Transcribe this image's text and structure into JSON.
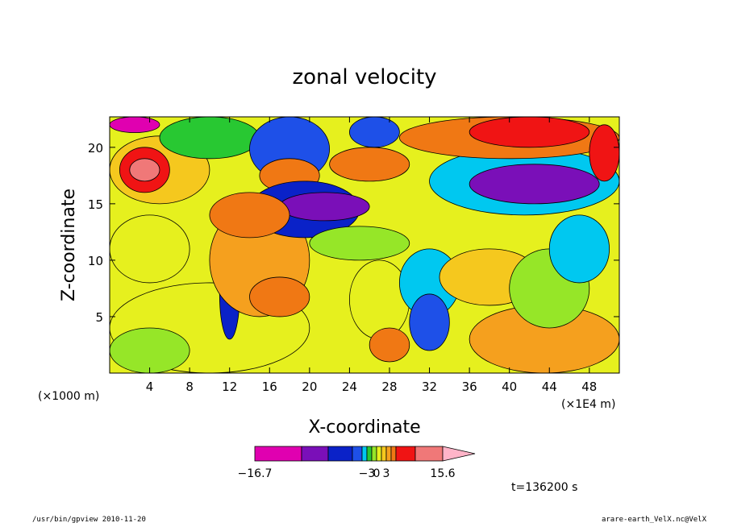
{
  "chart_data": {
    "type": "heatmap",
    "title": "zonal velocity",
    "xlabel": "X-coordinate",
    "ylabel": "Z-coordinate",
    "x_unit_left": "(×1000 m)",
    "x_unit_right": "(×1E4 m)",
    "xticks": [
      4,
      8,
      12,
      16,
      20,
      24,
      28,
      32,
      36,
      40,
      44,
      48
    ],
    "yticks": [
      5,
      10,
      15,
      20
    ],
    "xlim": [
      0,
      51
    ],
    "ylim": [
      0,
      22.7
    ],
    "time_label": "t=136200 s",
    "colorbar": {
      "colors": [
        "#e000b0",
        "#7a0fb8",
        "#0a22c8",
        "#1e50e8",
        "#00c8f0",
        "#28c832",
        "#96e628",
        "#e6f01e",
        "#f5c81e",
        "#f5a01e",
        "#f07814",
        "#f01414",
        "#f07878",
        "#ffb4c8"
      ],
      "tick_labels": [
        "−16.7",
        "−3",
        "0",
        "3",
        "15.6"
      ],
      "tick_values": [
        -16.7,
        -3,
        0,
        3,
        15.6
      ]
    },
    "regions": [
      {
        "x": 0,
        "z": 0,
        "w": 51,
        "h": 22.7,
        "v": 0
      },
      {
        "x": 0,
        "z": 0,
        "w": 20,
        "h": 8,
        "v": 0.5
      },
      {
        "x": 0,
        "z": 0,
        "w": 8,
        "h": 4,
        "v": -0.3
      },
      {
        "x": 0,
        "z": 8,
        "w": 8,
        "h": 6,
        "v": 0.4
      },
      {
        "x": 0,
        "z": 15,
        "w": 10,
        "h": 6,
        "v": 1.5
      },
      {
        "x": 1,
        "z": 16,
        "w": 5,
        "h": 4,
        "v": 9
      },
      {
        "x": 2,
        "z": 17,
        "w": 3,
        "h": 2,
        "v": 12
      },
      {
        "x": 0,
        "z": 21.3,
        "w": 5,
        "h": 1.4,
        "v": -15
      },
      {
        "x": 5,
        "z": 19,
        "w": 10,
        "h": 3.7,
        "v": -2
      },
      {
        "x": 11,
        "z": 3,
        "w": 2,
        "h": 8,
        "v": -6
      },
      {
        "x": 10,
        "z": 5,
        "w": 10,
        "h": 10,
        "v": 2
      },
      {
        "x": 14,
        "z": 17,
        "w": 8,
        "h": 5.7,
        "v": -5
      },
      {
        "x": 15,
        "z": 16,
        "w": 6,
        "h": 3,
        "v": 5
      },
      {
        "x": 14,
        "z": 12,
        "w": 11,
        "h": 5,
        "v": -6
      },
      {
        "x": 17,
        "z": 13.5,
        "w": 9,
        "h": 2.5,
        "v": -9
      },
      {
        "x": 20,
        "z": 10,
        "w": 10,
        "h": 3,
        "v": -1
      },
      {
        "x": 24,
        "z": 3,
        "w": 6,
        "h": 7,
        "v": 0.2
      },
      {
        "x": 26,
        "z": 1,
        "w": 4,
        "h": 3,
        "v": 5
      },
      {
        "x": 29,
        "z": 5,
        "w": 6,
        "h": 6,
        "v": -3
      },
      {
        "x": 30,
        "z": 2,
        "w": 4,
        "h": 5,
        "v": -5
      },
      {
        "x": 33,
        "z": 6,
        "w": 10,
        "h": 5,
        "v": 1
      },
      {
        "x": 36,
        "z": 0,
        "w": 15,
        "h": 6,
        "v": 2
      },
      {
        "x": 40,
        "z": 4,
        "w": 8,
        "h": 7,
        "v": -1
      },
      {
        "x": 44,
        "z": 8,
        "w": 6,
        "h": 6,
        "v": -2.5
      },
      {
        "x": 32,
        "z": 14,
        "w": 19,
        "h": 6,
        "v": -3
      },
      {
        "x": 36,
        "z": 15,
        "w": 13,
        "h": 3.5,
        "v": -9
      },
      {
        "x": 29,
        "z": 19,
        "w": 22,
        "h": 3.7,
        "v": 5
      },
      {
        "x": 36,
        "z": 20,
        "w": 12,
        "h": 2.7,
        "v": 9
      },
      {
        "x": 22,
        "z": 17,
        "w": 8,
        "h": 3,
        "v": 3
      },
      {
        "x": 24,
        "z": 20,
        "w": 5,
        "h": 2.7,
        "v": -4
      },
      {
        "x": 10,
        "z": 12,
        "w": 8,
        "h": 4,
        "v": 4
      },
      {
        "x": 14,
        "z": 5,
        "w": 6,
        "h": 3.5,
        "v": 5
      },
      {
        "x": 48,
        "z": 17,
        "w": 3,
        "h": 5,
        "v": 8
      }
    ]
  },
  "footer": {
    "left": "/usr/bin/gpview  2010-11-20",
    "right": "arare-earth_VelX.nc@VelX"
  }
}
